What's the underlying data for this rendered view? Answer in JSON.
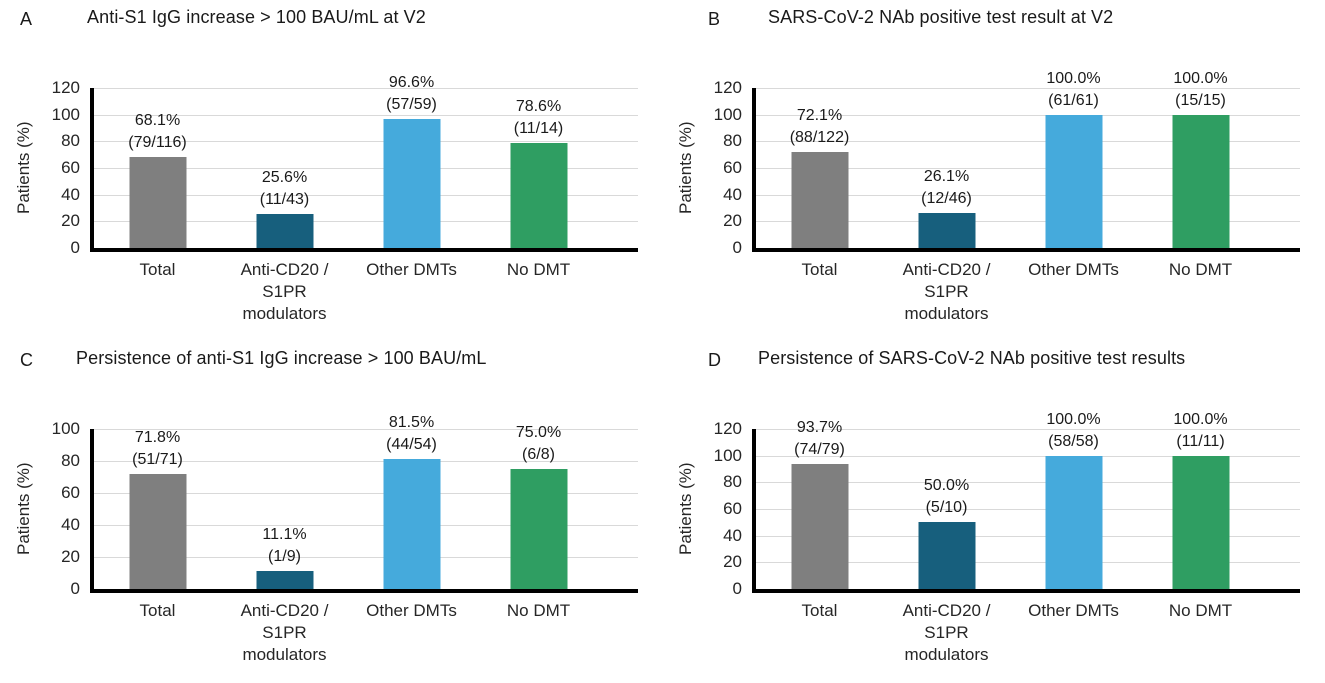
{
  "colors": {
    "bar_colors": [
      "#7F7F7F",
      "#175F7D",
      "#45AADC",
      "#2F9E62"
    ],
    "gridline": "#D9D9D9",
    "axis": "#000000"
  },
  "chart_data": [
    {
      "type": "bar",
      "panel_label": "A",
      "title": "Anti-S1 IgG increase > 100 BAU/mL at V2",
      "ylabel": "Patients (%)",
      "ylim": [
        0,
        120
      ],
      "ytick_step": 20,
      "grid": true,
      "legend": "none",
      "categories": [
        "Total",
        "Anti-CD20 /\nS1PR\nmodulators",
        "Other DMTs",
        "No DMT"
      ],
      "values": [
        68.1,
        25.6,
        96.6,
        78.6
      ],
      "bar_labels": [
        "68.1%\n(79/116)",
        "25.6%\n(11/43)",
        "96.6%\n(57/59)",
        "78.6%\n(11/14)"
      ]
    },
    {
      "type": "bar",
      "panel_label": "B",
      "title": "SARS-CoV-2 NAb positive test result at V2",
      "ylabel": "Patients (%)",
      "ylim": [
        0,
        120
      ],
      "ytick_step": 20,
      "grid": true,
      "legend": "none",
      "categories": [
        "Total",
        "Anti-CD20 /\nS1PR\nmodulators",
        "Other DMTs",
        "No DMT"
      ],
      "values": [
        72.1,
        26.1,
        100.0,
        100.0
      ],
      "bar_labels": [
        "72.1%\n(88/122)",
        "26.1%\n(12/46)",
        "100.0%\n(61/61)",
        "100.0%\n(15/15)"
      ]
    },
    {
      "type": "bar",
      "panel_label": "C",
      "title": "Persistence of anti-S1 IgG increase > 100 BAU/mL",
      "ylabel": "Patients (%)",
      "ylim": [
        0,
        100
      ],
      "ytick_step": 20,
      "grid": true,
      "legend": "none",
      "categories": [
        "Total",
        "Anti-CD20 /\nS1PR\nmodulators",
        "Other DMTs",
        "No DMT"
      ],
      "values": [
        71.8,
        11.1,
        81.5,
        75.0
      ],
      "bar_labels": [
        "71.8%\n(51/71)",
        "11.1%\n(1/9)",
        "81.5%\n(44/54)",
        "75.0%\n(6/8)"
      ]
    },
    {
      "type": "bar",
      "panel_label": "D",
      "title": "Persistence of SARS-CoV-2 NAb positive test results",
      "ylabel": "Patients (%)",
      "ylim": [
        0,
        120
      ],
      "ytick_step": 20,
      "grid": true,
      "legend": "none",
      "categories": [
        "Total",
        "Anti-CD20 /\nS1PR\nmodulators",
        "Other DMTs",
        "No DMT"
      ],
      "values": [
        93.7,
        50.0,
        100.0,
        100.0
      ],
      "bar_labels": [
        "93.7%\n(74/79)",
        "50.0%\n(5/10)",
        "100.0%\n(58/58)",
        "100.0%\n(11/11)"
      ]
    }
  ]
}
